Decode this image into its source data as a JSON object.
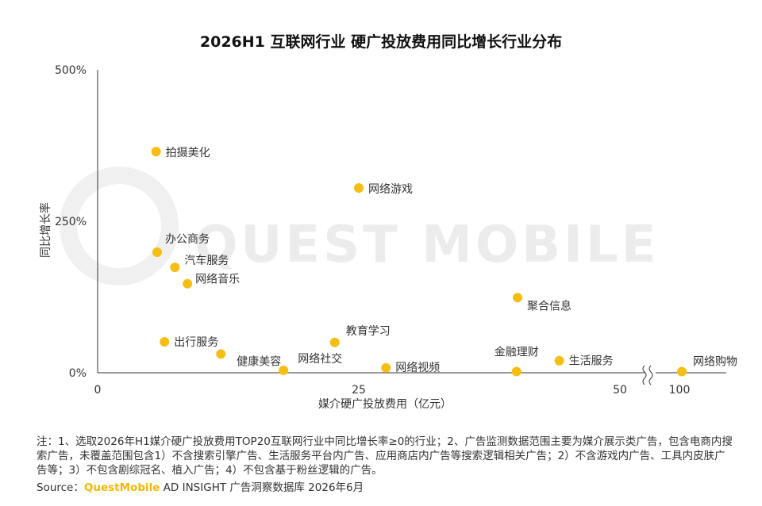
{
  "title": "2026H1 互联网行业 硬广投放费用同比增长行业分布",
  "watermark": "QUEST MOBILE",
  "chart_data": {
    "type": "scatter",
    "xlabel": "媒介硬广投放费用（亿元）",
    "ylabel": "同比增长率",
    "xlim": [
      0,
      100
    ],
    "x_axis_break": "between 50 and 100",
    "ylim": [
      0,
      500
    ],
    "x_ticks": [
      "0",
      "25",
      "50",
      "100"
    ],
    "y_ticks": [
      "0%",
      "250%",
      "500%"
    ],
    "point_color": "#F5BE14",
    "grid": false,
    "points": [
      {
        "label": "拍摄美化",
        "x": 5.6,
        "y": 365
      },
      {
        "label": "网络游戏",
        "x": 25,
        "y": 305
      },
      {
        "label": "办公商务",
        "x": 5.7,
        "y": 199
      },
      {
        "label": "汽车服务",
        "x": 7.4,
        "y": 174
      },
      {
        "label": "网络音乐",
        "x": 8.6,
        "y": 147
      },
      {
        "label": "聚合信息",
        "x": 40.2,
        "y": 124
      },
      {
        "label": "出行服务",
        "x": 6.4,
        "y": 51
      },
      {
        "label": "教育学习",
        "x": 22.7,
        "y": 50
      },
      {
        "label": "健康美容",
        "x": 11.8,
        "y": 31
      },
      {
        "label": "网络社交",
        "x": 17.8,
        "y": 4
      },
      {
        "label": "网络视频",
        "x": 27.6,
        "y": 8
      },
      {
        "label": "金融理财",
        "x": 40.1,
        "y": 2
      },
      {
        "label": "生活服务",
        "x": 44.2,
        "y": 20
      },
      {
        "label": "网络购物",
        "x": 102,
        "y": 2
      }
    ]
  },
  "notes": "注：1、选取2026年H1媒介硬广投放费用TOP20互联网行业中同比增长率≥0的行业；2、广告监测数据范围主要为媒介展示类广告，包含电商内搜索广告，未覆盖范围包含1）不含搜索引擎广告、生活服务平台内广告、应用商店内广告等搜索逻辑相关广告；2）不含游戏内广告、工具内皮肤广告等；3）不包含剧综冠名、植入广告；4）不包含基于粉丝逻辑的广告。",
  "source": {
    "prefix": "Source：",
    "brand": "QuestMobile",
    "suffix": " AD INSIGHT 广告洞察数据库 2026年6月"
  }
}
